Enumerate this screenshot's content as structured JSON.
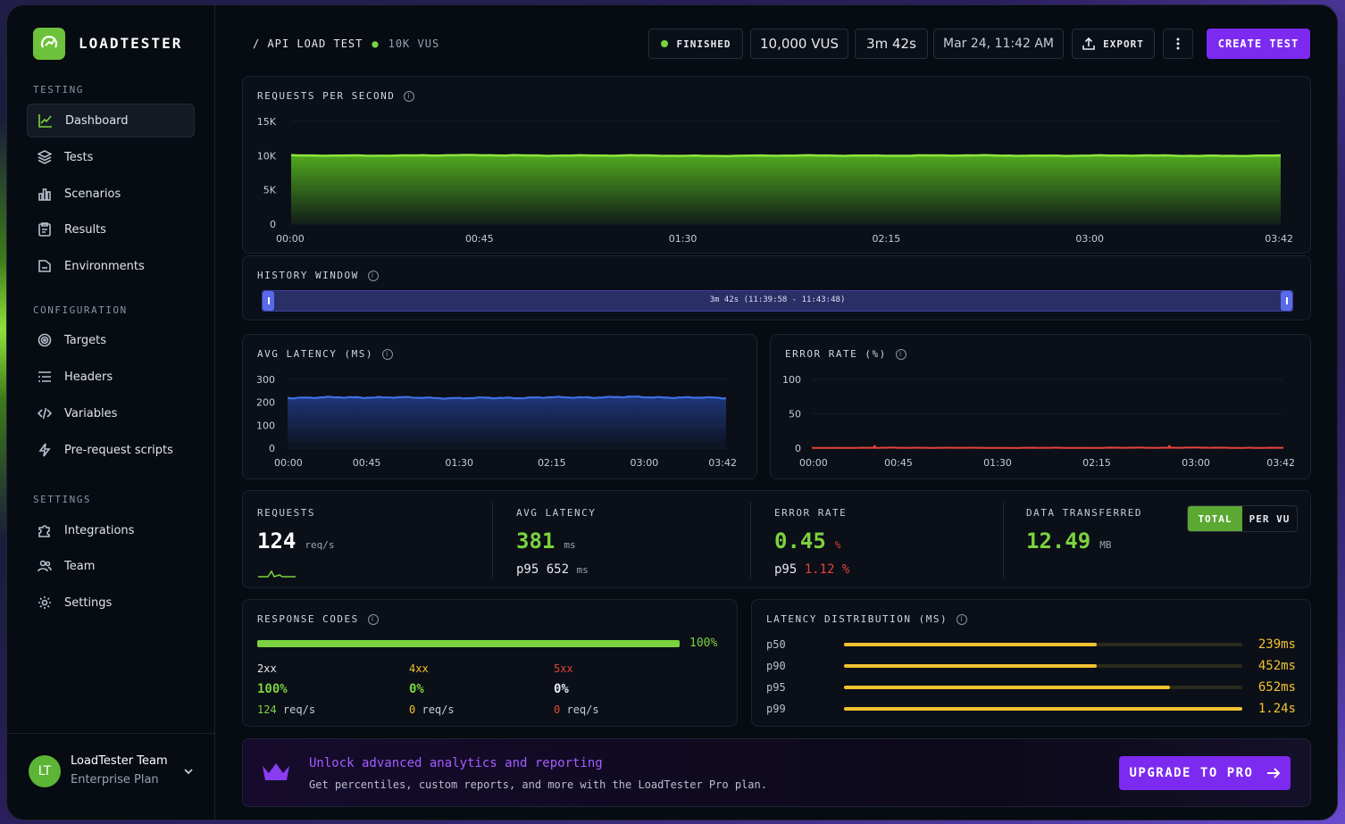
{
  "app": {
    "name": "LOADTESTER"
  },
  "sidebar": {
    "sections": [
      {
        "title": "TESTING",
        "items": [
          {
            "label": "Dashboard",
            "icon": "chart-line-icon",
            "active": true
          },
          {
            "label": "Tests",
            "icon": "layers-icon"
          },
          {
            "label": "Scenarios",
            "icon": "bar-chart-icon"
          },
          {
            "label": "Results",
            "icon": "clipboard-icon"
          },
          {
            "label": "Environments",
            "icon": "folder-icon"
          }
        ]
      },
      {
        "title": "CONFIGURATION",
        "items": [
          {
            "label": "Targets",
            "icon": "target-icon"
          },
          {
            "label": "Headers",
            "icon": "list-icon"
          },
          {
            "label": "Variables",
            "icon": "code-icon"
          },
          {
            "label": "Pre-request scripts",
            "icon": "bolt-icon"
          }
        ]
      },
      {
        "title": "SETTINGS",
        "items": [
          {
            "label": "Integrations",
            "icon": "puzzle-icon"
          },
          {
            "label": "Team",
            "icon": "users-icon"
          },
          {
            "label": "Settings",
            "icon": "gear-icon"
          }
        ]
      }
    ],
    "user": {
      "initials": "LT",
      "name": "LoadTester Team",
      "plan": "Enterprise Plan"
    }
  },
  "header": {
    "breadcrumb": "/ API LOAD TEST",
    "vus_tag": "10K VUS",
    "status": "FINISHED",
    "vus": "10,000 VUS",
    "duration": "3m 42s",
    "date": "Mar 24, 11:42 AM",
    "export_label": "EXPORT",
    "create_label": "CREATE TEST"
  },
  "charts": {
    "rps": {
      "title": "REQUESTS PER SECOND"
    },
    "history": {
      "title": "HISTORY WINDOW",
      "range_label": "3m 42s (11:39:58 - 11:43:48)"
    },
    "latency": {
      "title": "AVG LATENCY (MS)"
    },
    "error": {
      "title": "ERROR RATE (%)"
    }
  },
  "chart_data": [
    {
      "type": "area",
      "title": "REQUESTS PER SECOND",
      "x": [
        "00:00",
        "00:45",
        "01:30",
        "02:15",
        "03:00",
        "03:42"
      ],
      "y_ticks": [
        "15K",
        "10K",
        "5K",
        "0"
      ],
      "ylim": [
        0,
        15000
      ],
      "values": [
        10000,
        10050,
        9980,
        10020,
        10000,
        9990
      ],
      "color": "#8ee53f"
    },
    {
      "type": "area",
      "title": "AVG LATENCY (MS)",
      "x": [
        "00:00",
        "00:45",
        "01:30",
        "02:15",
        "03:00",
        "03:42"
      ],
      "y_ticks": [
        "300",
        "200",
        "100",
        "0"
      ],
      "ylim": [
        0,
        300
      ],
      "values": [
        220,
        222,
        218,
        221,
        223,
        219
      ],
      "color": "#3f6fe6"
    },
    {
      "type": "line",
      "title": "ERROR RATE (%)",
      "x": [
        "00:00",
        "00:45",
        "01:30",
        "02:15",
        "03:00",
        "03:42"
      ],
      "y_ticks": [
        "100",
        "50",
        "0"
      ],
      "ylim": [
        0,
        100
      ],
      "values": [
        0.4,
        0.6,
        0.4,
        0.5,
        0.7,
        0.4
      ],
      "color": "#e5443b"
    }
  ],
  "stats": {
    "requests": {
      "label": "REQUESTS",
      "value": "124",
      "unit": "req/s"
    },
    "latency": {
      "label": "AVG LATENCY",
      "value": "381",
      "unit": "ms",
      "p95_label": "p95",
      "p95_value": "652",
      "p95_unit": "ms"
    },
    "error": {
      "label": "ERROR RATE",
      "value": "0.45",
      "unit": "%",
      "p95_label": "p95",
      "p95_value": "1.12",
      "p95_unit": "%"
    },
    "data": {
      "label": "DATA TRANSFERRED",
      "value": "12.49",
      "unit": "MB",
      "toggle_total": "TOTAL",
      "toggle_pervu": "PER VU"
    }
  },
  "response_codes": {
    "title": "RESPONSE CODES",
    "bar_percent": "100%",
    "bar_fraction": 1.0,
    "codes": [
      {
        "code": "2xx",
        "percent": "100%",
        "rate": "124",
        "unit": "req/s",
        "color": "#7ad33f"
      },
      {
        "code": "4xx",
        "percent": "0%",
        "rate": "0",
        "unit": "req/s",
        "color": "#f2c230"
      },
      {
        "code": "5xx",
        "percent": "0%",
        "rate": "0",
        "unit": "req/s",
        "color": "#e5443b"
      }
    ]
  },
  "latency_distribution": {
    "title": "LATENCY DISTRIBUTION (MS)",
    "rows": [
      {
        "label": "p50",
        "value": "239ms",
        "fraction": 0.635
      },
      {
        "label": "p90",
        "value": "452ms",
        "fraction": 0.635
      },
      {
        "label": "p95",
        "value": "652ms",
        "fraction": 0.818
      },
      {
        "label": "p99",
        "value": "1.24s",
        "fraction": 1.0
      }
    ]
  },
  "banner": {
    "title": "Unlock advanced analytics and reporting",
    "subtitle": "Get percentiles, custom reports, and more with the LoadTester Pro plan.",
    "button": "UPGRADE TO PRO"
  },
  "colors": {
    "accent_green": "#7ad33f",
    "accent_purple": "#7c2af0",
    "latency_blue": "#3f6fe6",
    "error_red": "#e5443b",
    "distribution_yellow": "#f2c230"
  }
}
